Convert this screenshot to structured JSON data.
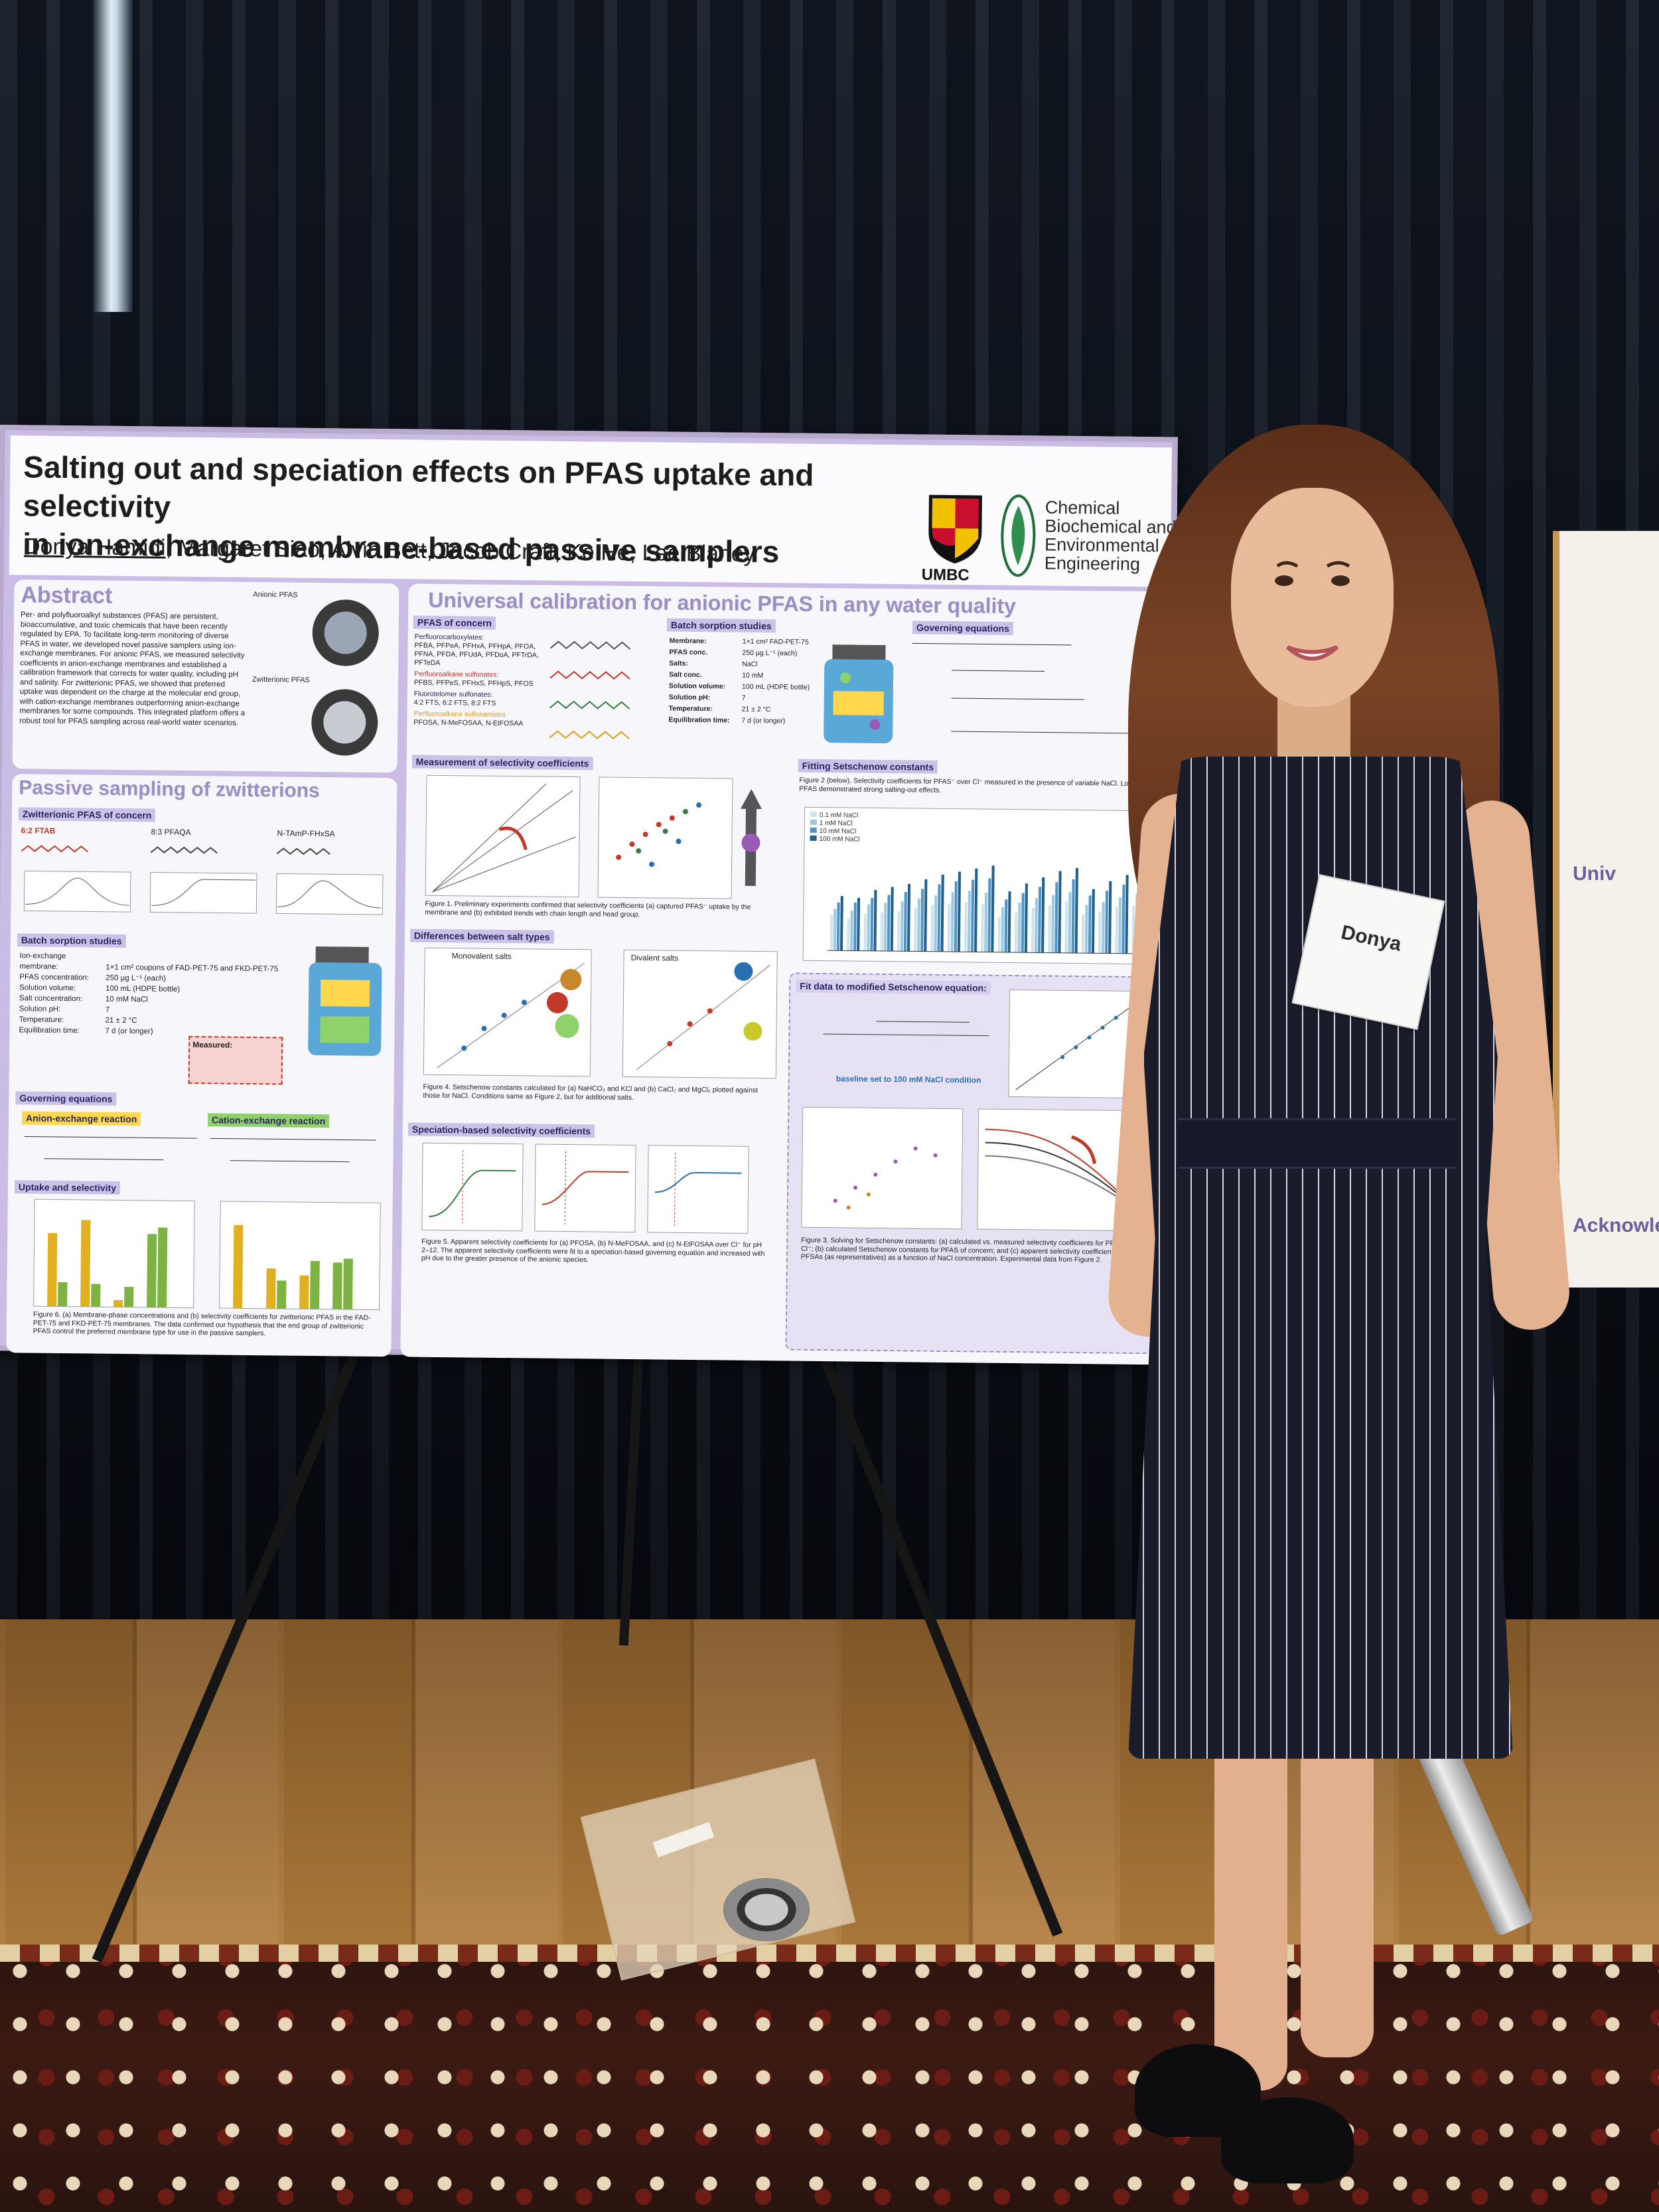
{
  "poster": {
    "title_line1": "Salting out and speciation effects on PFAS uptake and selectivity",
    "title_line2": "in ion-exchange membrane-based passive samplers",
    "authors_first": "Donya Hamidi",
    "authors_rest": ", Margaret Siao, Alvin Bett, Jacob Craft, Ke He, Lee Blaney",
    "umbc_logo_text": "UMBC",
    "department": [
      "Chemical",
      "Biochemical and",
      "Environmental",
      "Engineering"
    ],
    "abstract": {
      "title": "Abstract",
      "text": "Per- and polyfluoroalkyl substances (PFAS) are persistent, bioaccumulative, and toxic chemicals that have been recently regulated by EPA. To facilitate long-term monitoring of diverse PFAS in water, we developed novel passive samplers using ion-exchange membranes. For anionic PFAS, we measured selectivity coefficients in anion-exchange membranes and established a calibration framework that corrects for water quality, including pH and salinity. For zwitterionic PFAS, we showed that preferred uptake was dependent on the charge at the molecular end group, with cation-exchange membranes outperforming anion-exchange membranes for some compounds. This integrated platform offers a robust tool for PFAS sampling across real-world water scenarios.",
      "anionic_label": "Anionic PFAS",
      "zwitterionic_label": "Zwitterionic PFAS"
    },
    "zwitterions": {
      "title": "Passive sampling of zwitterions",
      "sub_concern": "Zwitterionic PFAS of concern",
      "compounds": [
        "6:2 FTAB",
        "8:3 PFAQA",
        "N-TAmP-FHxSA"
      ],
      "sub_batch": "Batch sorption studies",
      "batch_rows": [
        [
          "Ion-exchange membrane:",
          "1×1 cm² coupons of FAD-PET-75 and FKD-PET-75"
        ],
        [
          "PFAS concentration:",
          "250 µg L⁻¹ (each)"
        ],
        [
          "Solution volume:",
          "100 mL (HDPE bottle)"
        ],
        [
          "Salt concentration:",
          "10 mM NaCl"
        ],
        [
          "Solution pH:",
          "7"
        ],
        [
          "Temperature:",
          "21 ± 2 °C"
        ],
        [
          "Equilibration time:",
          "7 d (or longer)"
        ]
      ],
      "sub_equations": "Governing equations",
      "anion_reaction": "Anion-exchange reaction",
      "cation_reaction": "Cation-exchange reaction",
      "sub_uptake": "Uptake and selectivity",
      "fig6_caption": "Figure 6. (a) Membrane-phase concentrations and (b) selectivity coefficients for zwitterionic PFAS in the FAD-PET-75 and FKD-PET-75 membranes. The data confirmed our hypothesis that the end group of zwitterionic PFAS control the preferred membrane type for use in the passive samplers.",
      "measured_label": "Measured:"
    },
    "universal": {
      "title": "Universal calibration for anionic PFAS in any water quality",
      "sub_concern": "PFAS of concern",
      "concern_groups": [
        "Perfluorocarboxylates:",
        "PFBA, PFPeA, PFHxA, PFHpA, PFOA, PFNA, PFDA, PFUdA, PFDoA, PFTrDA, PFTeDA",
        "Perfluoroalkane sulfonates:",
        "PFBS, PFPeS, PFHxS, PFHpS, PFOS",
        "Fluorotelomer sulfonates:",
        "4:2 FTS, 6:2 FTS, 8:2 FTS",
        "Perfluoroalkane sulfonamides",
        "PFOSA, N-MeFOSAA, N-EtFOSAA"
      ],
      "sub_batch": "Batch sorption studies",
      "batch_rows": [
        [
          "Membrane:",
          "1×1 cm² FAD-PET-75"
        ],
        [
          "PFAS conc.",
          "250 µg L⁻¹ (each)"
        ],
        [
          "Salts:",
          "NaCl"
        ],
        [
          "Salt conc.",
          "10 mM"
        ],
        [
          "Solution volume:",
          "100 mL (HDPE bottle)"
        ],
        [
          "Solution pH:",
          "7"
        ],
        [
          "Temperature:",
          "21 ± 2 °C"
        ],
        [
          "Equilibration time:",
          "7 d (or longer)"
        ]
      ],
      "sub_equations": "Governing equations",
      "sub_measurement": "Measurement of selectivity coefficients",
      "fig1_caption": "Figure 1. Preliminary experiments confirmed that selectivity coefficients (a) captured PFAS⁻ uptake by the membrane and (b) exhibited trends with chain length and head group.",
      "sub_setschenow": "Fitting Setschenow constants",
      "fig2_caption": "Figure 2 (below). Selectivity coefficients for PFAS⁻ over Cl⁻ measured in the presence of variable NaCl. Long-chain PFAS demonstrated strong salting-out effects.",
      "sub_salt_types": "Differences between salt types",
      "monovalent_label": "Monovalent salts",
      "divalent_label": "Divalent salts",
      "fig4_caption": "Figure 4. Setschenow constants calculated for (a) NaHCO₃ and KCl and (b) CaCl₂ and MgCl₂ plotted against those for NaCl. Conditions same as Figure 2, but for additional salts.",
      "sub_speciation": "Speciation-based selectivity coefficients",
      "fig5_caption": "Figure 5. Apparent selectivity coefficients for (a) PFOSA, (b) N-MeFOSAA, and (c) N-EtFOSAA over Cl⁻ for pH 2–12. The apparent selectivity coefficients were fit to a speciation-based governing equation and increased with pH due to the greater presence of the anionic species.",
      "fit_label": "Fit data to modified Setschenow equation:",
      "baseline_label": "baseline set to 100 mM NaCl condition",
      "fig3_caption": "Figure 3. Solving for Setschenow constants: (a) calculated vs. measured selectivity coefficients for PFAS⁻ over Cl⁻; (b) calculated Setschenow constants for PFAS of concern; and (c) apparent selectivity coefficients for PFSAs (as representatives) as a function of NaCl concentration. Experimental data from Figure 2.",
      "fig2_legend": [
        "0.1 mM NaCl",
        "1 mM NaCl",
        "10 mM NaCl",
        "100 mM NaCl"
      ],
      "fig2_bars": [
        [
          2.2,
          2.6,
          3.0,
          3.4
        ],
        [
          2.0,
          2.5,
          3.0,
          3.3
        ],
        [
          2.3,
          2.9,
          3.3,
          3.8
        ],
        [
          2.4,
          3.0,
          3.5,
          4.0
        ],
        [
          2.5,
          3.1,
          3.7,
          4.2
        ],
        [
          2.7,
          3.3,
          3.9,
          4.5
        ],
        [
          2.9,
          3.5,
          4.2,
          4.8
        ],
        [
          3.0,
          3.7,
          4.4,
          5.0
        ],
        [
          3.1,
          3.8,
          4.5,
          5.2
        ],
        [
          3.0,
          3.7,
          4.6,
          5.4
        ],
        [
          2.2,
          2.8,
          3.3,
          3.8
        ],
        [
          2.5,
          3.1,
          3.7,
          4.3
        ],
        [
          2.8,
          3.4,
          4.1,
          4.7
        ],
        [
          3.0,
          3.6,
          4.4,
          5.1
        ],
        [
          3.2,
          3.8,
          4.6,
          5.3
        ],
        [
          2.4,
          3.0,
          3.6,
          4.0
        ],
        [
          2.6,
          3.2,
          3.9,
          4.5
        ],
        [
          2.9,
          3.5,
          4.3,
          4.9
        ],
        [
          3.0,
          3.7,
          4.5,
          5.2
        ]
      ]
    }
  },
  "name_badge": {
    "name": "Donya"
  },
  "side_poster": {
    "headings": [
      "Univ",
      "Acknowle"
    ]
  },
  "colors": {
    "poster_border": "#c9bde6",
    "panel_title": "#9a8fc4",
    "dress": "#1a1c2b"
  }
}
